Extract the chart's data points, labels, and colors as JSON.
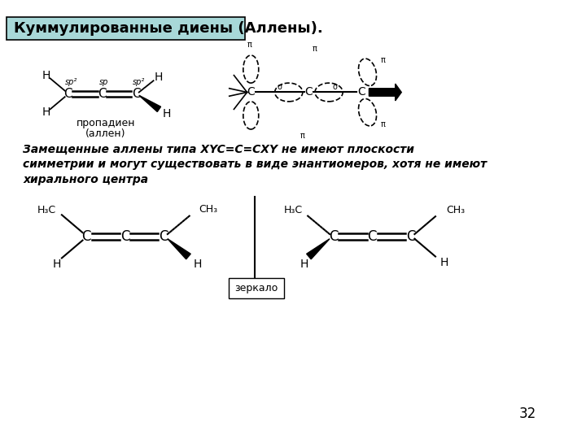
{
  "title": "Куммулированные диены (Аллены).",
  "title_bg": "#a8d8d8",
  "title_fontsize": 13,
  "title_bold": true,
  "body_text": "Замещенные аллены типа XYC=C=CXY не имеют плоскости\nсимметрии и могут существовать в виде энантиомеров, хотя не имеют\nхирального центра",
  "body_fontsize": 10,
  "page_number": "32",
  "mirror_label": "зеркало",
  "background": "#ffffff"
}
